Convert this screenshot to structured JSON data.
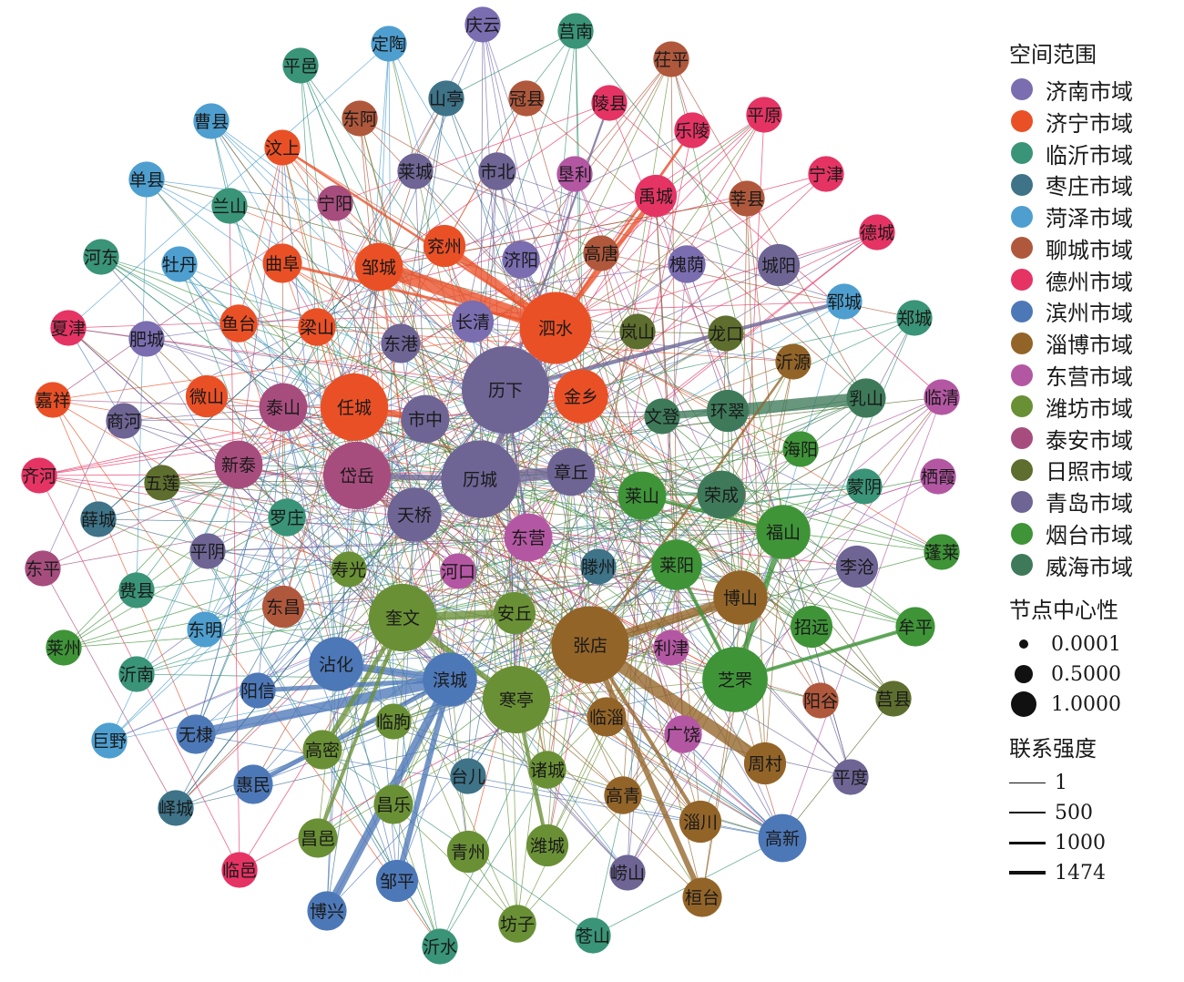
{
  "legend": {
    "region_title": "空间范围",
    "regions": [
      {
        "name": "济南市域",
        "color": "#7a6db0"
      },
      {
        "name": "济宁市域",
        "color": "#ea5026"
      },
      {
        "name": "临沂市域",
        "color": "#3a9477"
      },
      {
        "name": "枣庄市域",
        "color": "#3e7388"
      },
      {
        "name": "菏泽市域",
        "color": "#4e9fd0"
      },
      {
        "name": "聊城市域",
        "color": "#b0583c"
      },
      {
        "name": "德州市域",
        "color": "#e53464"
      },
      {
        "name": "滨州市域",
        "color": "#4d78b8"
      },
      {
        "name": "淄博市域",
        "color": "#936428"
      },
      {
        "name": "东营市域",
        "color": "#b457a3"
      },
      {
        "name": "潍坊市域",
        "color": "#6a9036"
      },
      {
        "name": "泰安市域",
        "color": "#a74d7e"
      },
      {
        "name": "日照市域",
        "color": "#5e6e2e"
      },
      {
        "name": "青岛市域",
        "color": "#6e6595"
      },
      {
        "name": "烟台市域",
        "color": "#3f9438"
      },
      {
        "name": "威海市域",
        "color": "#3e7a5a"
      }
    ],
    "centrality_title": "节点中心性",
    "centrality": [
      "0.0001",
      "0.5000",
      "1.0000"
    ],
    "strength_title": "联系强度",
    "strength": [
      "1",
      "500",
      "1000",
      "1474"
    ]
  },
  "nodes": [
    {
      "id": "庆云",
      "region": 0,
      "c": 0.02
    },
    {
      "id": "莒南",
      "region": 2,
      "c": 0.02
    },
    {
      "id": "定陶",
      "region": 4,
      "c": 0.02
    },
    {
      "id": "茌平",
      "region": 5,
      "c": 0.02
    },
    {
      "id": "平邑",
      "region": 2,
      "c": 0.02
    },
    {
      "id": "山亭",
      "region": 3,
      "c": 0.02
    },
    {
      "id": "冠县",
      "region": 5,
      "c": 0.02
    },
    {
      "id": "陵县",
      "region": 6,
      "c": 0.02
    },
    {
      "id": "平原",
      "region": 6,
      "c": 0.02
    },
    {
      "id": "曹县",
      "region": 4,
      "c": 0.02
    },
    {
      "id": "东阿",
      "region": 5,
      "c": 0.02
    },
    {
      "id": "乐陵",
      "region": 6,
      "c": 0.02
    },
    {
      "id": "汶上",
      "region": 1,
      "c": 0.02
    },
    {
      "id": "宁津",
      "region": 6,
      "c": 0.02
    },
    {
      "id": "单县",
      "region": 4,
      "c": 0.02
    },
    {
      "id": "莱城",
      "region": 13,
      "c": 0.02
    },
    {
      "id": "市北",
      "region": 13,
      "c": 0.03
    },
    {
      "id": "垦利",
      "region": 9,
      "c": 0.02
    },
    {
      "id": "禹城",
      "region": 6,
      "c": 0.06
    },
    {
      "id": "莘县",
      "region": 5,
      "c": 0.02
    },
    {
      "id": "兰山",
      "region": 2,
      "c": 0.02
    },
    {
      "id": "宁阳",
      "region": 11,
      "c": 0.02
    },
    {
      "id": "德城",
      "region": 6,
      "c": 0.02
    },
    {
      "id": "河东",
      "region": 2,
      "c": 0.02
    },
    {
      "id": "牡丹",
      "region": 4,
      "c": 0.02
    },
    {
      "id": "曲阜",
      "region": 1,
      "c": 0.04
    },
    {
      "id": "邹城",
      "region": 1,
      "c": 0.12
    },
    {
      "id": "兖州",
      "region": 1,
      "c": 0.06
    },
    {
      "id": "济阳",
      "region": 0,
      "c": 0.03
    },
    {
      "id": "高唐",
      "region": 5,
      "c": 0.02
    },
    {
      "id": "槐荫",
      "region": 0,
      "c": 0.03
    },
    {
      "id": "城阳",
      "region": 13,
      "c": 0.06
    },
    {
      "id": "郓城",
      "region": 4,
      "c": 0.02
    },
    {
      "id": "郑城",
      "region": 2,
      "c": 0.02
    },
    {
      "id": "夏津",
      "region": 6,
      "c": 0.02
    },
    {
      "id": "肥城",
      "region": 0,
      "c": 0.02
    },
    {
      "id": "鱼台",
      "region": 1,
      "c": 0.03
    },
    {
      "id": "梁山",
      "region": 1,
      "c": 0.03
    },
    {
      "id": "长清",
      "region": 0,
      "c": 0.06
    },
    {
      "id": "泗水",
      "region": 1,
      "c": 0.55
    },
    {
      "id": "岚山",
      "region": 12,
      "c": 0.02
    },
    {
      "id": "龙口",
      "region": 12,
      "c": 0.02
    },
    {
      "id": "沂源",
      "region": 8,
      "c": 0.02
    },
    {
      "id": "东港",
      "region": 13,
      "c": 0.04
    },
    {
      "id": "嘉祥",
      "region": 1,
      "c": 0.02
    },
    {
      "id": "微山",
      "region": 1,
      "c": 0.06
    },
    {
      "id": "泰山",
      "region": 11,
      "c": 0.12
    },
    {
      "id": "任城",
      "region": 1,
      "c": 0.45
    },
    {
      "id": "市中",
      "region": 13,
      "c": 0.12
    },
    {
      "id": "历下",
      "region": 13,
      "c": 1.0
    },
    {
      "id": "金乡",
      "region": 1,
      "c": 0.2
    },
    {
      "id": "文登",
      "region": 15,
      "c": 0.02
    },
    {
      "id": "环翠",
      "region": 15,
      "c": 0.06
    },
    {
      "id": "乳山",
      "region": 15,
      "c": 0.04
    },
    {
      "id": "临清",
      "region": 9,
      "c": 0.02
    },
    {
      "id": "商河",
      "region": 13,
      "c": 0.02
    },
    {
      "id": "齐河",
      "region": 6,
      "c": 0.02
    },
    {
      "id": "新泰",
      "region": 11,
      "c": 0.12
    },
    {
      "id": "五莲",
      "region": 12,
      "c": 0.02
    },
    {
      "id": "岱岳",
      "region": 11,
      "c": 0.45
    },
    {
      "id": "历城",
      "region": 13,
      "c": 0.7
    },
    {
      "id": "章丘",
      "region": 13,
      "c": 0.12
    },
    {
      "id": "海阳",
      "region": 14,
      "c": 0.02
    },
    {
      "id": "蒙阴",
      "region": 2,
      "c": 0.02
    },
    {
      "id": "栖霞",
      "region": 9,
      "c": 0.02
    },
    {
      "id": "薛城",
      "region": 3,
      "c": 0.02
    },
    {
      "id": "罗庄",
      "region": 2,
      "c": 0.03
    },
    {
      "id": "天桥",
      "region": 13,
      "c": 0.2
    },
    {
      "id": "东营",
      "region": 9,
      "c": 0.12
    },
    {
      "id": "莱山",
      "region": 14,
      "c": 0.12
    },
    {
      "id": "荣成",
      "region": 15,
      "c": 0.12
    },
    {
      "id": "福山",
      "region": 14,
      "c": 0.2
    },
    {
      "id": "东平",
      "region": 11,
      "c": 0.02
    },
    {
      "id": "平阴",
      "region": 13,
      "c": 0.02
    },
    {
      "id": "寿光",
      "region": 10,
      "c": 0.02
    },
    {
      "id": "河口",
      "region": 9,
      "c": 0.02
    },
    {
      "id": "滕州",
      "region": 3,
      "c": 0.02
    },
    {
      "id": "莱阳",
      "region": 14,
      "c": 0.15
    },
    {
      "id": "李沧",
      "region": 13,
      "c": 0.06
    },
    {
      "id": "蓬莱",
      "region": 14,
      "c": 0.02
    },
    {
      "id": "费县",
      "region": 2,
      "c": 0.02
    },
    {
      "id": "东昌",
      "region": 5,
      "c": 0.06
    },
    {
      "id": "奎文",
      "region": 10,
      "c": 0.45
    },
    {
      "id": "安丘",
      "region": 10,
      "c": 0.06
    },
    {
      "id": "张店",
      "region": 8,
      "c": 0.7
    },
    {
      "id": "博山",
      "region": 8,
      "c": 0.2
    },
    {
      "id": "莱州",
      "region": 14,
      "c": 0.02
    },
    {
      "id": "东明",
      "region": 4,
      "c": 0.02
    },
    {
      "id": "招远",
      "region": 14,
      "c": 0.06
    },
    {
      "id": "牟平",
      "region": 14,
      "c": 0.04
    },
    {
      "id": "利津",
      "region": 9,
      "c": 0.02
    },
    {
      "id": "沂南",
      "region": 2,
      "c": 0.02
    },
    {
      "id": "沾化",
      "region": 7,
      "c": 0.2
    },
    {
      "id": "阳信",
      "region": 7,
      "c": 0.02
    },
    {
      "id": "滨城",
      "region": 7,
      "c": 0.2
    },
    {
      "id": "寒亭",
      "region": 10,
      "c": 0.45
    },
    {
      "id": "芝罘",
      "region": 14,
      "c": 0.4
    },
    {
      "id": "阳谷",
      "region": 5,
      "c": 0.02
    },
    {
      "id": "莒县",
      "region": 12,
      "c": 0.02
    },
    {
      "id": "巨野",
      "region": 4,
      "c": 0.02
    },
    {
      "id": "无棣",
      "region": 7,
      "c": 0.04
    },
    {
      "id": "临朐",
      "region": 10,
      "c": 0.02
    },
    {
      "id": "临淄",
      "region": 8,
      "c": 0.04
    },
    {
      "id": "广饶",
      "region": 9,
      "c": 0.03
    },
    {
      "id": "周村",
      "region": 8,
      "c": 0.06
    },
    {
      "id": "高密",
      "region": 10,
      "c": 0.04
    },
    {
      "id": "平度",
      "region": 13,
      "c": 0.02
    },
    {
      "id": "惠民",
      "region": 7,
      "c": 0.04
    },
    {
      "id": "台儿",
      "region": 3,
      "c": 0.02
    },
    {
      "id": "诸城",
      "region": 10,
      "c": 0.03
    },
    {
      "id": "高青",
      "region": 8,
      "c": 0.03
    },
    {
      "id": "峄城",
      "region": 3,
      "c": 0.02
    },
    {
      "id": "昌乐",
      "region": 10,
      "c": 0.04
    },
    {
      "id": "淄川",
      "region": 8,
      "c": 0.06
    },
    {
      "id": "高新",
      "region": 7,
      "c": 0.12
    },
    {
      "id": "昌邑",
      "region": 10,
      "c": 0.04
    },
    {
      "id": "青州",
      "region": 10,
      "c": 0.06
    },
    {
      "id": "潍城",
      "region": 10,
      "c": 0.06
    },
    {
      "id": "临邑",
      "region": 6,
      "c": 0.02
    },
    {
      "id": "邹平",
      "region": 7,
      "c": 0.06
    },
    {
      "id": "崂山",
      "region": 13,
      "c": 0.02
    },
    {
      "id": "桓台",
      "region": 8,
      "c": 0.04
    },
    {
      "id": "博兴",
      "region": 7,
      "c": 0.04
    },
    {
      "id": "坊子",
      "region": 10,
      "c": 0.03
    },
    {
      "id": "苍山",
      "region": 2,
      "c": 0.02
    },
    {
      "id": "沂水",
      "region": 2,
      "c": 0.02
    }
  ],
  "strong_links": [
    {
      "a": "泗水",
      "b": "邹城",
      "w": 1474
    },
    {
      "a": "历城",
      "b": "章丘",
      "w": 1200
    },
    {
      "a": "张店",
      "b": "周村",
      "w": 1300
    },
    {
      "a": "环翠",
      "b": "乳山",
      "w": 1200
    },
    {
      "a": "张店",
      "b": "博山",
      "w": 900
    },
    {
      "a": "奎文",
      "b": "安丘",
      "w": 800
    },
    {
      "a": "无棣",
      "b": "滨城",
      "w": 1000
    },
    {
      "a": "滨城",
      "b": "博兴",
      "w": 800
    },
    {
      "a": "沾化",
      "b": "滨城",
      "w": 700
    },
    {
      "a": "泗水",
      "b": "兖州",
      "w": 800
    },
    {
      "a": "任城",
      "b": "市中",
      "w": 600
    },
    {
      "a": "文登",
      "b": "环翠",
      "w": 700
    },
    {
      "a": "泗水",
      "b": "历城",
      "w": 500
    },
    {
      "a": "岱岳",
      "b": "历城",
      "w": 500
    },
    {
      "a": "泗水",
      "b": "禹城",
      "w": 400
    },
    {
      "a": "福山",
      "b": "芝罘",
      "w": 500
    },
    {
      "a": "张店",
      "b": "桓台",
      "w": 500
    },
    {
      "a": "历下",
      "b": "郓城",
      "w": 300
    },
    {
      "a": "奎文",
      "b": "寒亭",
      "w": 500
    },
    {
      "a": "奎文",
      "b": "高密",
      "w": 400
    },
    {
      "a": "滨城",
      "b": "邹平",
      "w": 500
    },
    {
      "a": "惠民",
      "b": "滨城",
      "w": 400
    },
    {
      "a": "阳信",
      "b": "滨城",
      "w": 400
    },
    {
      "a": "张店",
      "b": "淄川",
      "w": 300
    },
    {
      "a": "奎文",
      "b": "昌邑",
      "w": 300
    },
    {
      "a": "寒亭",
      "b": "潍城",
      "w": 300
    },
    {
      "a": "芝罘",
      "b": "莱阳",
      "w": 300
    },
    {
      "a": "芝罘",
      "b": "牟平",
      "w": 300
    },
    {
      "a": "福山",
      "b": "莱山",
      "w": 250
    },
    {
      "a": "张店",
      "b": "沂源",
      "w": 150
    },
    {
      "a": "历下",
      "b": "陵县",
      "w": 120
    },
    {
      "a": "泗水",
      "b": "汶上",
      "w": 150
    },
    {
      "a": "泗水",
      "b": "乐陵",
      "w": 150
    },
    {
      "a": "泗水",
      "b": "曲阜",
      "w": 200
    },
    {
      "a": "历下",
      "b": "东营",
      "w": 150
    }
  ]
}
